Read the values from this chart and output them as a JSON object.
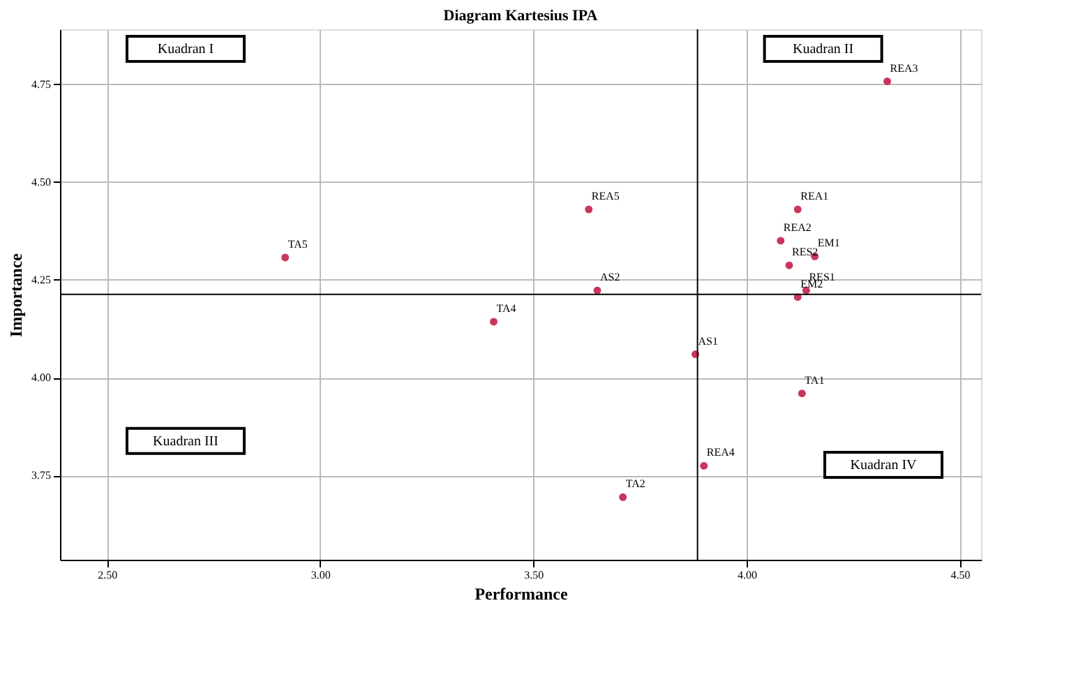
{
  "chart_data": {
    "type": "scatter",
    "title": "Diagram Kartesius IPA",
    "xlabel": "Performance",
    "ylabel": "Importance",
    "x": [
      2.918,
      3.407,
      3.63,
      3.65,
      3.88,
      3.9,
      3.71,
      4.13,
      4.33,
      4.12,
      4.08,
      4.16,
      4.1,
      4.14,
      4.12
    ],
    "series": [
      {
        "color": "#c8365c",
        "values": [
          4.307,
          4.143,
          4.43,
          4.223,
          4.06,
          3.775,
          3.695,
          3.96,
          4.757,
          4.43,
          4.35,
          4.31,
          4.287,
          4.223,
          4.206
        ]
      }
    ],
    "marker": "circle",
    "grid": true,
    "xlim": [
      2.39,
      4.55
    ],
    "ylim": [
      3.535,
      4.89
    ],
    "xticks": [
      {
        "value": 2.5,
        "label": "2.50"
      },
      {
        "value": 3.0,
        "label": "3.00"
      },
      {
        "value": 3.5,
        "label": "3.50"
      },
      {
        "value": 4.0,
        "label": "4.00"
      },
      {
        "value": 4.5,
        "label": "4.50"
      }
    ],
    "yticks": [
      {
        "value": 3.75,
        "label": "3.75"
      },
      {
        "value": 4.0,
        "label": "4.00"
      },
      {
        "value": 4.25,
        "label": "4.25"
      },
      {
        "value": 4.5,
        "label": "4.50"
      },
      {
        "value": 4.75,
        "label": "4.75"
      }
    ],
    "ref_lines": [
      {
        "axis": "x",
        "value": 3.885,
        "color": "#000000"
      },
      {
        "axis": "y",
        "value": 4.213,
        "color": "#000000"
      }
    ],
    "annotations": [
      "Kuadran I",
      "Kuadran II",
      "Kuadran III",
      "Kuadran IV",
      {
        "text": "TA5",
        "x": 2.918,
        "y": 4.307
      },
      {
        "text": "TA4",
        "x": 3.407,
        "y": 4.143
      },
      {
        "text": "REA5",
        "x": 3.63,
        "y": 4.43
      },
      {
        "text": "AS2",
        "x": 3.65,
        "y": 4.223
      },
      {
        "text": "AS1",
        "x": 3.88,
        "y": 4.06
      },
      {
        "text": "REA4",
        "x": 3.9,
        "y": 3.775
      },
      {
        "text": "TA2",
        "x": 3.71,
        "y": 3.695
      },
      {
        "text": "TA1",
        "x": 4.13,
        "y": 3.96
      },
      {
        "text": "REA3",
        "x": 4.33,
        "y": 4.757
      },
      {
        "text": "REA1",
        "x": 4.12,
        "y": 4.43
      },
      {
        "text": "REA2",
        "x": 4.08,
        "y": 4.35
      },
      {
        "text": "EM1",
        "x": 4.16,
        "y": 4.31
      },
      {
        "text": "RES2",
        "x": 4.1,
        "y": 4.287
      },
      {
        "text": "RES1",
        "x": 4.14,
        "y": 4.223
      },
      {
        "text": "EM2",
        "x": 4.12,
        "y": 4.206
      }
    ]
  }
}
